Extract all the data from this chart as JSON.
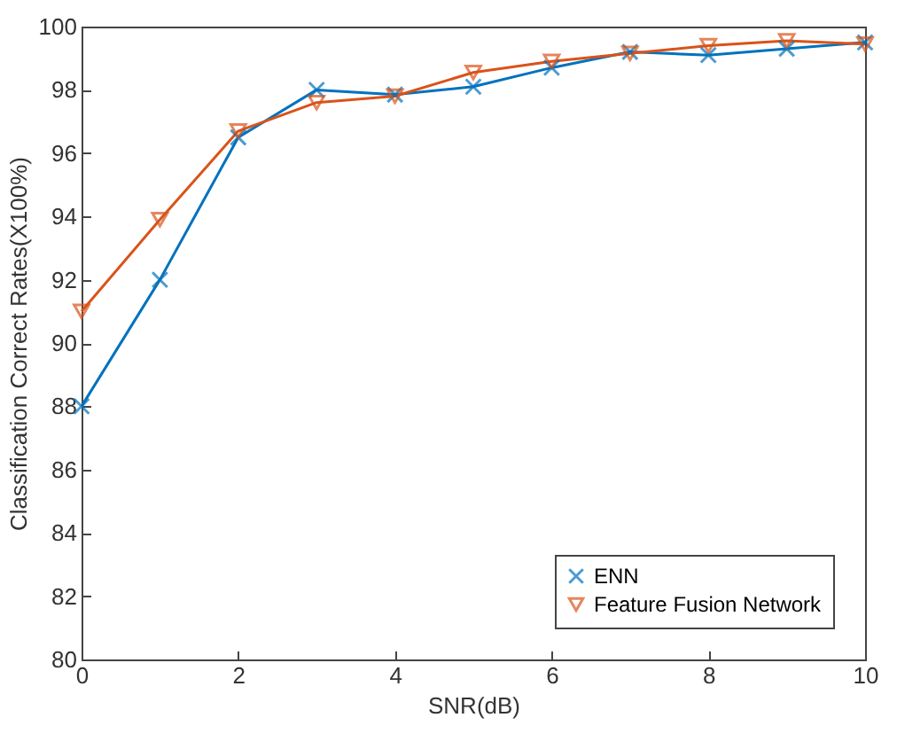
{
  "chart_data": {
    "type": "line",
    "xlabel": "SNR(dB)",
    "ylabel": "Classification Correct Rates(X100%)",
    "x": [
      0,
      1,
      2,
      3,
      4,
      5,
      6,
      7,
      8,
      9,
      10
    ],
    "series": [
      {
        "name": "ENN",
        "color": "#0072bd",
        "marker": "cross",
        "values": [
          88,
          92,
          96.5,
          98,
          97.85,
          98.1,
          98.7,
          99.2,
          99.1,
          99.3,
          99.5
        ]
      },
      {
        "name": "Feature Fusion Network",
        "color": "#d95319",
        "marker": "triangle",
        "values": [
          91,
          93.9,
          96.7,
          97.6,
          97.8,
          98.55,
          98.9,
          99.15,
          99.4,
          99.55,
          99.45
        ]
      }
    ],
    "xlim": [
      0,
      10
    ],
    "xticks": [
      0,
      2,
      4,
      6,
      8,
      10
    ],
    "ylim": [
      80,
      100
    ],
    "yticks": [
      80,
      82,
      84,
      86,
      88,
      90,
      92,
      94,
      96,
      98,
      100
    ],
    "grid": false,
    "legend": "bottom right",
    "line_style": "solid"
  }
}
